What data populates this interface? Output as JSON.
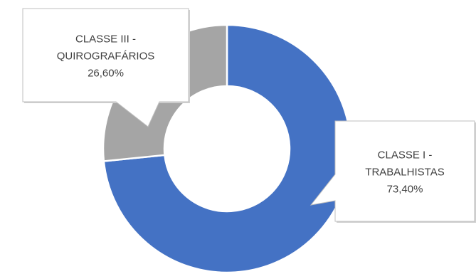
{
  "chart_data": {
    "type": "pie",
    "variant": "doughnut",
    "title": "",
    "legend": "none",
    "slices": [
      {
        "label_lines": [
          "CLASSE I -",
          "TRABALHISTAS"
        ],
        "value": 73.4,
        "value_label": "73,40%",
        "color": "#4472C4"
      },
      {
        "label_lines": [
          "CLASSE III -",
          "QUIROGRAFÁRIOS"
        ],
        "value": 26.6,
        "value_label": "26,60%",
        "color": "#A5A5A5"
      }
    ]
  }
}
